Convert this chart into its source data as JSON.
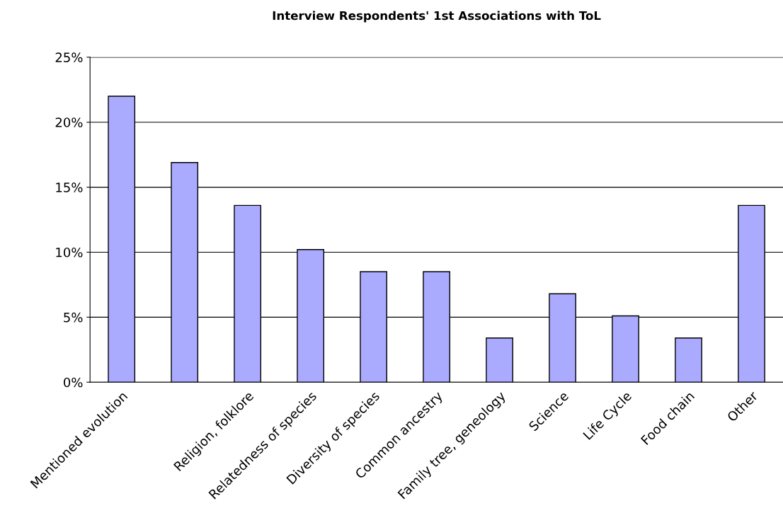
{
  "chart_data": {
    "type": "bar",
    "title": "Interview Respondents' 1st Associations with ToL",
    "categories": [
      "Mentioned evolution",
      null,
      "Religion, folklore",
      "Relatedness of species",
      "Diversity of species",
      "Common ancestry",
      "Family tree, geneology",
      "Science",
      "Life Cycle",
      "Food chain",
      "Other"
    ],
    "values": [
      22.0,
      16.9,
      13.6,
      10.2,
      8.5,
      8.5,
      3.4,
      6.8,
      5.1,
      3.4,
      13.6
    ],
    "color": "#aaaaff",
    "ylim": [
      0,
      25
    ],
    "yticks": [
      {
        "value": 0,
        "label": "0%"
      },
      {
        "value": 5,
        "label": "5%"
      },
      {
        "value": 10,
        "label": "10%"
      },
      {
        "value": 15,
        "label": "15%"
      },
      {
        "value": 20,
        "label": "20%"
      },
      {
        "value": 25,
        "label": "25%"
      }
    ],
    "grid": "y"
  }
}
